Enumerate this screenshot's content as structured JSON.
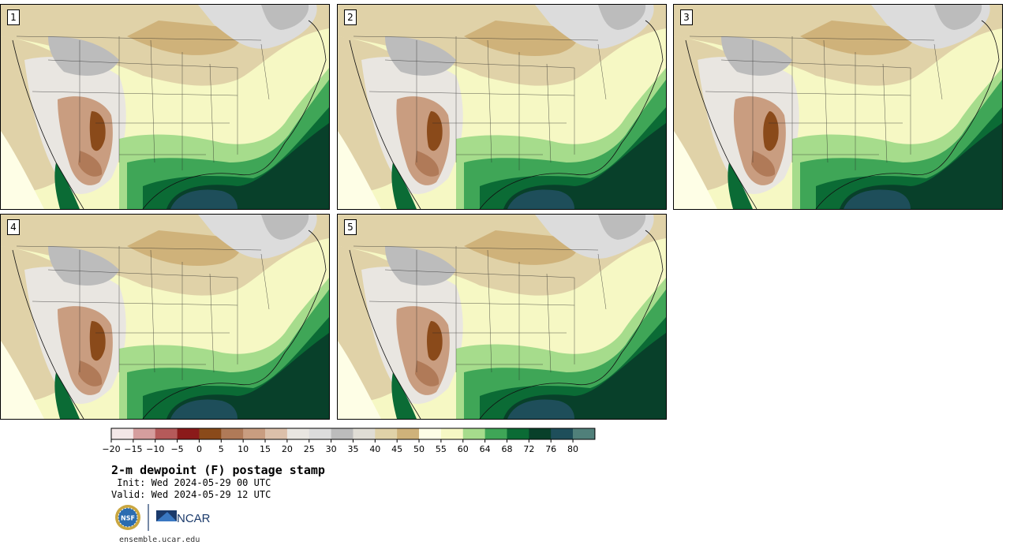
{
  "panels": [
    {
      "label": "1"
    },
    {
      "label": "2"
    },
    {
      "label": "3"
    },
    {
      "label": "4"
    },
    {
      "label": "5"
    }
  ],
  "colorbar": {
    "colors": [
      "#f3e7e7",
      "#d59e9e",
      "#b55a5a",
      "#8b1a1a",
      "#8a4a1a",
      "#b07a58",
      "#c99d80",
      "#dcc0aa",
      "#e9e6e1",
      "#dcdcdc",
      "#bcbcbc",
      "#e0ddd5",
      "#e0d2a8",
      "#cfb27a",
      "#fefee6",
      "#f6f8c4",
      "#a6dc8c",
      "#3fa657",
      "#0b6b35",
      "#08402a",
      "#1e4e5a",
      "#50807a"
    ],
    "tick_labels": [
      "−20",
      "−15",
      "−10",
      "−5",
      "0",
      "5",
      "10",
      "15",
      "20",
      "25",
      "30",
      "35",
      "40",
      "45",
      "50",
      "55",
      "60",
      "64",
      "68",
      "72",
      "76",
      "80"
    ]
  },
  "title": "2-m dewpoint (F) postage stamp",
  "init": " Init: Wed 2024-05-29 00 UTC",
  "valid": "Valid: Wed 2024-05-29 12 UTC",
  "logo_text": "NCAR",
  "logo_seal": "NSF",
  "url": "ensemble.ucar.edu"
}
